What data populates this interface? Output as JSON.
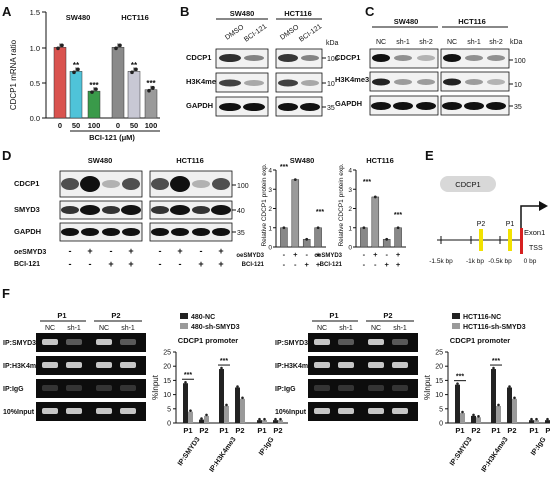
{
  "panel_letters": [
    "A",
    "B",
    "C",
    "D",
    "E",
    "F"
  ],
  "panelA": {
    "ylabel": "CDCP1 mRNA ratio",
    "yticks": [
      "0.0",
      "0.5",
      "1.0",
      "1.5"
    ],
    "groups": [
      "SW480",
      "HCT116"
    ],
    "xticks": [
      "0",
      "50",
      "100",
      "0",
      "50",
      "100"
    ],
    "xlabel": "BCI-121 (μM)",
    "stars": [
      "**",
      "***",
      "**",
      "***"
    ]
  },
  "panelB": {
    "cells": [
      "SW480",
      "HCT116"
    ],
    "lanes": [
      "DMSO",
      "BCI-121",
      "DMSO",
      "BCI-121"
    ],
    "proteins": [
      "CDCP1",
      "H3K4me3",
      "GAPDH"
    ],
    "kda_label": "kDa",
    "kda": [
      "100",
      "10",
      "35"
    ]
  },
  "panelC": {
    "cells": [
      "SW480",
      "HCT116"
    ],
    "lanes": [
      "NC",
      "sh-1",
      "sh-2",
      "NC",
      "sh-1",
      "sh-2"
    ],
    "proteins": [
      "CDCP1",
      "H3K4me3",
      "GAPDH"
    ],
    "kda_label": "kDa",
    "kda": [
      "100",
      "10",
      "35"
    ]
  },
  "panelD": {
    "cells": [
      "SW480",
      "HCT116"
    ],
    "proteins": [
      "CDCP1",
      "SMYD3",
      "GAPDH"
    ],
    "kda": [
      "100",
      "40",
      "35"
    ],
    "row_labels": [
      "oeSMYD3",
      "BCI-121"
    ],
    "oe_signs": [
      "-",
      "+",
      "-",
      "+",
      "-",
      "+",
      "-",
      "+"
    ],
    "bci_signs": [
      "-",
      "-",
      "+",
      "+",
      "-",
      "-",
      "+",
      "+"
    ],
    "chart_ylabel": "Relative CDCP1 protein exp.",
    "chart_yticks": [
      "0",
      "1",
      "2",
      "3",
      "4"
    ],
    "sw480_title": "SW480",
    "hct116_title": "HCT116",
    "sw480_stars": [
      "***",
      "***"
    ],
    "hct116_stars": [
      "***",
      "***"
    ],
    "chart_oe_signs": [
      "-",
      "+",
      "-",
      "+"
    ],
    "chart_bci_signs": [
      "-",
      "-",
      "+",
      "+"
    ]
  },
  "panelE": {
    "protein": "CDCP1",
    "sites": [
      "P2",
      "P1"
    ],
    "gene": "Exon1",
    "tss": "TSS",
    "axis": [
      "-1.5k bp",
      "-1k bp",
      "-0.5k bp",
      "0 bp"
    ]
  },
  "panelF_left": {
    "primer_labels": [
      "P1",
      "P2"
    ],
    "lanes": [
      "NC",
      "sh-1",
      "NC",
      "sh-1"
    ],
    "rows": [
      "IP:SMYD3",
      "IP:H3K4me3",
      "IP:IgG",
      "10%Input"
    ],
    "legend": [
      "480-NC",
      "480-sh-SMYD3"
    ],
    "title": "CDCP1 promoter",
    "ylabel": "%Input",
    "yticks": [
      "0",
      "5",
      "10",
      "15",
      "20",
      "25"
    ],
    "xticks": [
      "P1",
      "P2",
      "P1",
      "P2",
      "P1",
      "P2"
    ],
    "groups": [
      "IP:SMYD3",
      "IP:H3K4me3",
      "IP:IgG"
    ],
    "stars": [
      "***",
      "***"
    ]
  },
  "panelF_right": {
    "primer_labels": [
      "P1",
      "P2"
    ],
    "lanes": [
      "NC",
      "sh-1",
      "NC",
      "sh-1"
    ],
    "rows": [
      "IP:SMYD3",
      "IP:H3K4me3",
      "IP:IgG",
      "10%Input"
    ],
    "legend": [
      "HCT116-NC",
      "HCT116-sh-SMYD3"
    ],
    "title": "CDCP1 promoter",
    "ylabel": "%Input",
    "yticks": [
      "0",
      "5",
      "10",
      "15",
      "20",
      "25"
    ],
    "xticks": [
      "P1",
      "P2",
      "P1",
      "P2",
      "P1",
      "P2"
    ],
    "groups": [
      "IP:SMYD3",
      "IP:H3K4me3",
      "IP:IgG"
    ],
    "stars": [
      "***",
      "***"
    ]
  },
  "colors": {
    "bar_red": "#d9534f",
    "bar_cyan": "#4fc3d9",
    "bar_green": "#3a9a4a",
    "bar_grey_dark": "#8a8a8a",
    "bar_grey_light": "#c8c8d4",
    "bar_grey_med": "#9a9a9a",
    "legend_dark": "#222222",
    "legend_grey": "#9a9a9a",
    "chip_band": "#e8e8e8",
    "site_yellow": "#f2e200",
    "tss_red": "#d62020"
  },
  "chart_data": [
    {
      "panel": "A",
      "type": "bar",
      "categories": [
        "0",
        "50",
        "100",
        "0",
        "50",
        "100"
      ],
      "groups": [
        "SW480",
        "SW480",
        "SW480",
        "HCT116",
        "HCT116",
        "HCT116"
      ],
      "values": [
        1.0,
        0.66,
        0.38,
        1.0,
        0.66,
        0.4
      ],
      "ylabel": "CDCP1 mRNA ratio",
      "xlabel": "BCI-121 (μM)",
      "ylim": [
        0,
        1.5
      ]
    },
    {
      "panel": "D-SW480",
      "type": "bar",
      "title": "SW480",
      "values": [
        1.0,
        3.5,
        0.4,
        1.0
      ],
      "ylabel": "Relative CDCP1 protein exp.",
      "ylim": [
        0,
        4
      ]
    },
    {
      "panel": "D-HCT116",
      "type": "bar",
      "title": "HCT116",
      "values": [
        1.0,
        2.6,
        0.4,
        1.0
      ],
      "ylabel": "Relative CDCP1 protein exp.",
      "ylim": [
        0,
        4
      ]
    },
    {
      "panel": "F-left",
      "type": "bar",
      "title": "CDCP1 promoter",
      "categories": [
        "P1",
        "P2",
        "P1",
        "P2",
        "P1",
        "P2"
      ],
      "series": [
        {
          "name": "480-NC",
          "values": [
            14,
            1.2,
            19,
            12.5,
            1,
            1
          ]
        },
        {
          "name": "480-sh-SMYD3",
          "values": [
            4,
            2.5,
            6,
            8.5,
            1,
            1
          ]
        }
      ],
      "ylabel": "%Input",
      "ylim": [
        0,
        25
      ]
    },
    {
      "panel": "F-right",
      "type": "bar",
      "title": "CDCP1 promoter",
      "categories": [
        "P1",
        "P2",
        "P1",
        "P2",
        "P1",
        "P2"
      ],
      "series": [
        {
          "name": "HCT116-NC",
          "values": [
            13.5,
            2.5,
            19,
            12.5,
            1,
            1
          ]
        },
        {
          "name": "HCT116-sh-SMYD3",
          "values": [
            3.5,
            2,
            6,
            8.5,
            1,
            1
          ]
        }
      ],
      "ylabel": "%Input",
      "ylim": [
        0,
        25
      ]
    }
  ]
}
